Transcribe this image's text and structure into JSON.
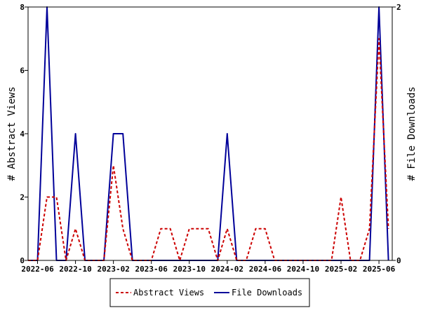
{
  "chart_data": {
    "type": "line",
    "x_ticks": [
      "2022-06",
      "2022-10",
      "2023-02",
      "2023-06",
      "2023-10",
      "2024-02",
      "2024-06",
      "2024-10",
      "2025-02",
      "2025-06"
    ],
    "x": [
      "2022-05",
      "2022-06",
      "2022-07",
      "2022-08",
      "2022-09",
      "2022-10",
      "2022-11",
      "2022-12",
      "2023-01",
      "2023-02",
      "2023-03",
      "2023-04",
      "2023-05",
      "2023-06",
      "2023-07",
      "2023-08",
      "2023-09",
      "2023-10",
      "2023-11",
      "2023-12",
      "2024-01",
      "2024-02",
      "2024-03",
      "2024-04",
      "2024-05",
      "2024-06",
      "2024-07",
      "2024-08",
      "2024-09",
      "2024-10",
      "2024-11",
      "2024-12",
      "2025-01",
      "2025-02",
      "2025-03",
      "2025-04",
      "2025-05",
      "2025-06",
      "2025-07"
    ],
    "series": [
      {
        "name": "Abstract Views",
        "axis": "left",
        "color": "#cc0000",
        "style": "dashed",
        "values": [
          0,
          0,
          2,
          2,
          0,
          1,
          0,
          0,
          0,
          3,
          1,
          0,
          0,
          0,
          1,
          1,
          0,
          1,
          1,
          1,
          0,
          1,
          0,
          0,
          1,
          1,
          0,
          0,
          0,
          0,
          0,
          0,
          0,
          2,
          0,
          0,
          1,
          7,
          1
        ]
      },
      {
        "name": "File Downloads",
        "axis": "right",
        "color": "#000099",
        "style": "solid",
        "values": [
          0,
          0,
          2,
          0,
          0,
          1,
          0,
          0,
          0,
          1,
          1,
          0,
          0,
          0,
          0,
          0,
          0,
          0,
          0,
          0,
          0,
          1,
          0,
          0,
          0,
          0,
          0,
          0,
          0,
          0,
          0,
          0,
          0,
          0,
          0,
          0,
          0,
          2,
          0
        ]
      }
    ],
    "ylabel_left": "# Abstract Views",
    "ylabel_right": "# File Downloads",
    "ylim_left": [
      0,
      8
    ],
    "yticks_left": [
      0,
      2,
      4,
      6,
      8
    ],
    "ylim_right": [
      0,
      2
    ],
    "yticks_right": [
      0,
      2
    ],
    "grid": false,
    "legend_placement": "bottom-center",
    "legend": {
      "abstract_views": "Abstract Views",
      "file_downloads": "File Downloads"
    }
  }
}
